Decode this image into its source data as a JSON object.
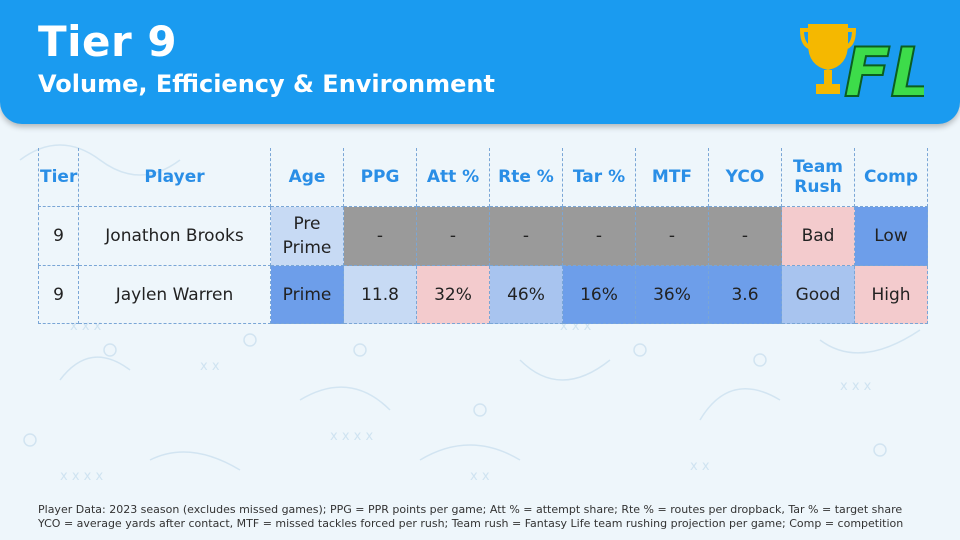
{
  "header": {
    "title": "Tier 9",
    "subtitle": "Volume, Efficiency & Environment",
    "logo_text": "FL",
    "color": "#1a9bf0"
  },
  "table": {
    "columns": [
      "Tier",
      "Player",
      "Age",
      "PPG",
      "Att %",
      "Rte %",
      "Tar %",
      "MTF",
      "YCO",
      "Team Rush",
      "Comp"
    ],
    "rows": [
      {
        "tier": "9",
        "player": "Jonathon Brooks",
        "age": "Pre Prime",
        "ppg": "-",
        "att": "-",
        "rte": "-",
        "tar": "-",
        "mtf": "-",
        "yco": "-",
        "team_rush": "Bad",
        "comp": "Low"
      },
      {
        "tier": "9",
        "player": "Jaylen Warren",
        "age": "Prime",
        "ppg": "11.8",
        "att": "32%",
        "rte": "46%",
        "tar": "16%",
        "mtf": "36%",
        "yco": "3.6",
        "team_rush": "Good",
        "comp": "High"
      }
    ]
  },
  "footer": {
    "line1": "Player Data: 2023 season (excludes missed games); PPG = PPR points per game; Att % = attempt share; Rte % = routes per dropback, Tar % = target share",
    "line2": "YCO = average yards after contact, MTF = missed tackles forced per rush; Team rush = Fantasy Life team rushing projection per game; Comp = competition"
  }
}
